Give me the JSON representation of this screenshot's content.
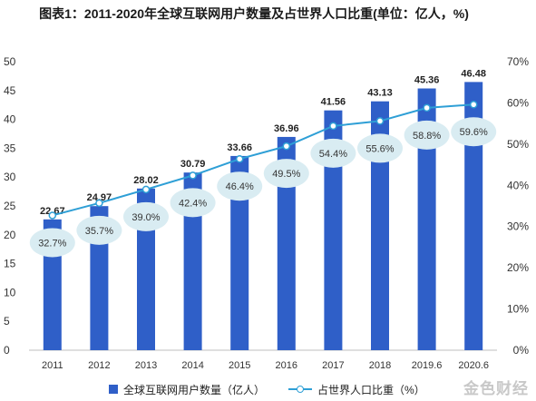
{
  "title": "图表1：2011-2020年全球互联网用户数量及占世界人口比重(单位：亿人，%)",
  "watermark": "金色财经",
  "colors": {
    "bar": "#2f5fc8",
    "line": "#2e9fd6",
    "bubble": "#d9ecf2"
  },
  "chart_data": {
    "type": "bar",
    "title": "图表1：2011-2020年全球互联网用户数量及占世界人口比重(单位：亿人，%)",
    "categories": [
      "2011",
      "2012",
      "2013",
      "2014",
      "2015",
      "2016",
      "2017",
      "2018",
      "2019.6",
      "2020.6"
    ],
    "series": [
      {
        "name": "全球互联网用户数量（亿人）",
        "type": "bar",
        "axis": "left",
        "values": [
          22.67,
          24.97,
          28.02,
          30.79,
          33.66,
          36.96,
          41.56,
          43.13,
          45.36,
          46.48
        ],
        "labels": [
          "22.67",
          "24.97",
          "28.02",
          "30.79",
          "33.66",
          "36.96",
          "41.56",
          "43.13",
          "45.36",
          "46.48"
        ]
      },
      {
        "name": "占世界人口比重（%）",
        "type": "line",
        "axis": "right",
        "values": [
          32.7,
          35.7,
          39.0,
          42.4,
          46.4,
          49.5,
          54.4,
          55.6,
          58.8,
          59.6
        ],
        "labels": [
          "32.7%",
          "35.7%",
          "39.0%",
          "42.4%",
          "46.4%",
          "49.5%",
          "54.4%",
          "55.6%",
          "58.8%",
          "59.6%"
        ]
      }
    ],
    "y_left": {
      "range": [
        0,
        50
      ],
      "ticks": [
        0,
        5,
        10,
        15,
        20,
        25,
        30,
        35,
        40,
        45,
        50
      ],
      "tick_labels": [
        "0",
        "5",
        "10",
        "15",
        "20",
        "25",
        "30",
        "35",
        "40",
        "45",
        "50"
      ]
    },
    "y_right": {
      "range": [
        0,
        70
      ],
      "ticks": [
        0,
        10,
        20,
        30,
        40,
        50,
        60,
        70
      ],
      "tick_labels": [
        "0%",
        "10%",
        "20%",
        "30%",
        "40%",
        "50%",
        "60%",
        "70%"
      ]
    },
    "grid": false,
    "legend": "bottom"
  }
}
